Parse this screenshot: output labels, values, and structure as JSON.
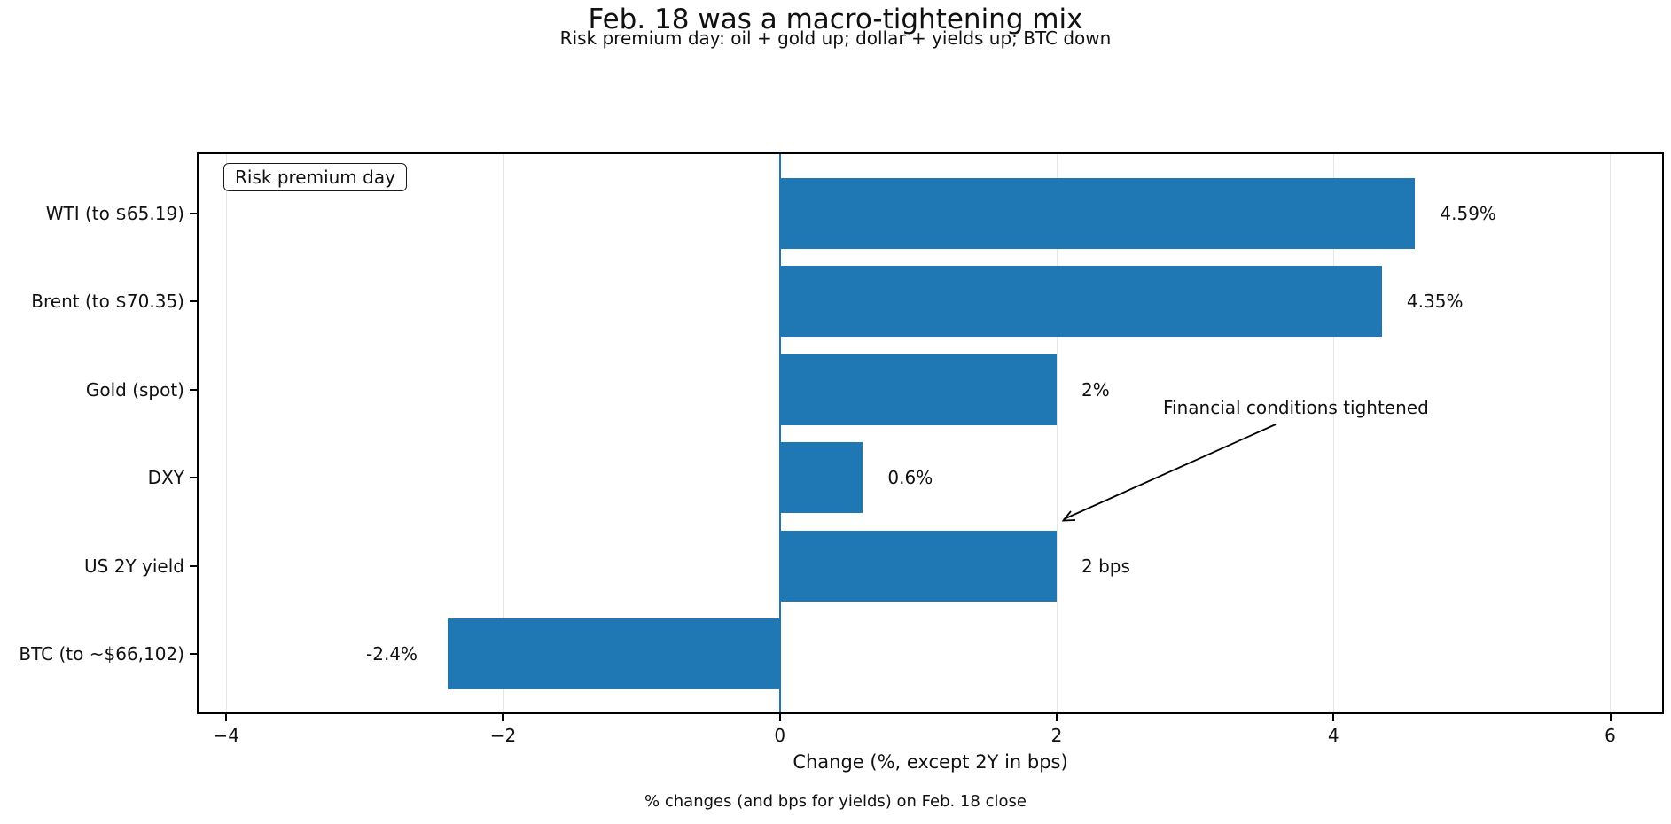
{
  "chart_data": {
    "type": "bar",
    "orientation": "horizontal",
    "title": "Feb. 18 was a macro-tightening mix",
    "subtitle": "Risk premium day: oil + gold up; dollar + yields up; BTC down",
    "xlabel": "Change (%, except 2Y in bps)",
    "footnote": "% changes (and bps for yields) on Feb. 18 close",
    "legend_label": "Risk premium day",
    "annotation": "Financial conditions tightened",
    "categories": [
      "WTI (to $65.19)",
      "Brent (to $70.35)",
      "Gold (spot)",
      "DXY",
      "US 2Y yield",
      "BTC (to ~$66,102)"
    ],
    "values": [
      4.59,
      4.35,
      2,
      0.6,
      2,
      -2.4
    ],
    "bar_labels": [
      "4.59%",
      "4.35%",
      "2%",
      "0.6%",
      "2 bps",
      "-2.4%"
    ],
    "xlim": [
      -4.2,
      6.4
    ],
    "xticks": [
      -4,
      -2,
      0,
      2,
      4,
      6
    ],
    "xtick_labels": [
      "−4",
      "−2",
      "0",
      "2",
      "4",
      "6"
    ],
    "bar_color": "#1f77b4",
    "zero_line_color": "#1f77b4",
    "grid": true,
    "grid_color": "#e6e6e6",
    "legend_position": "upper left",
    "background": "#ffffff"
  }
}
